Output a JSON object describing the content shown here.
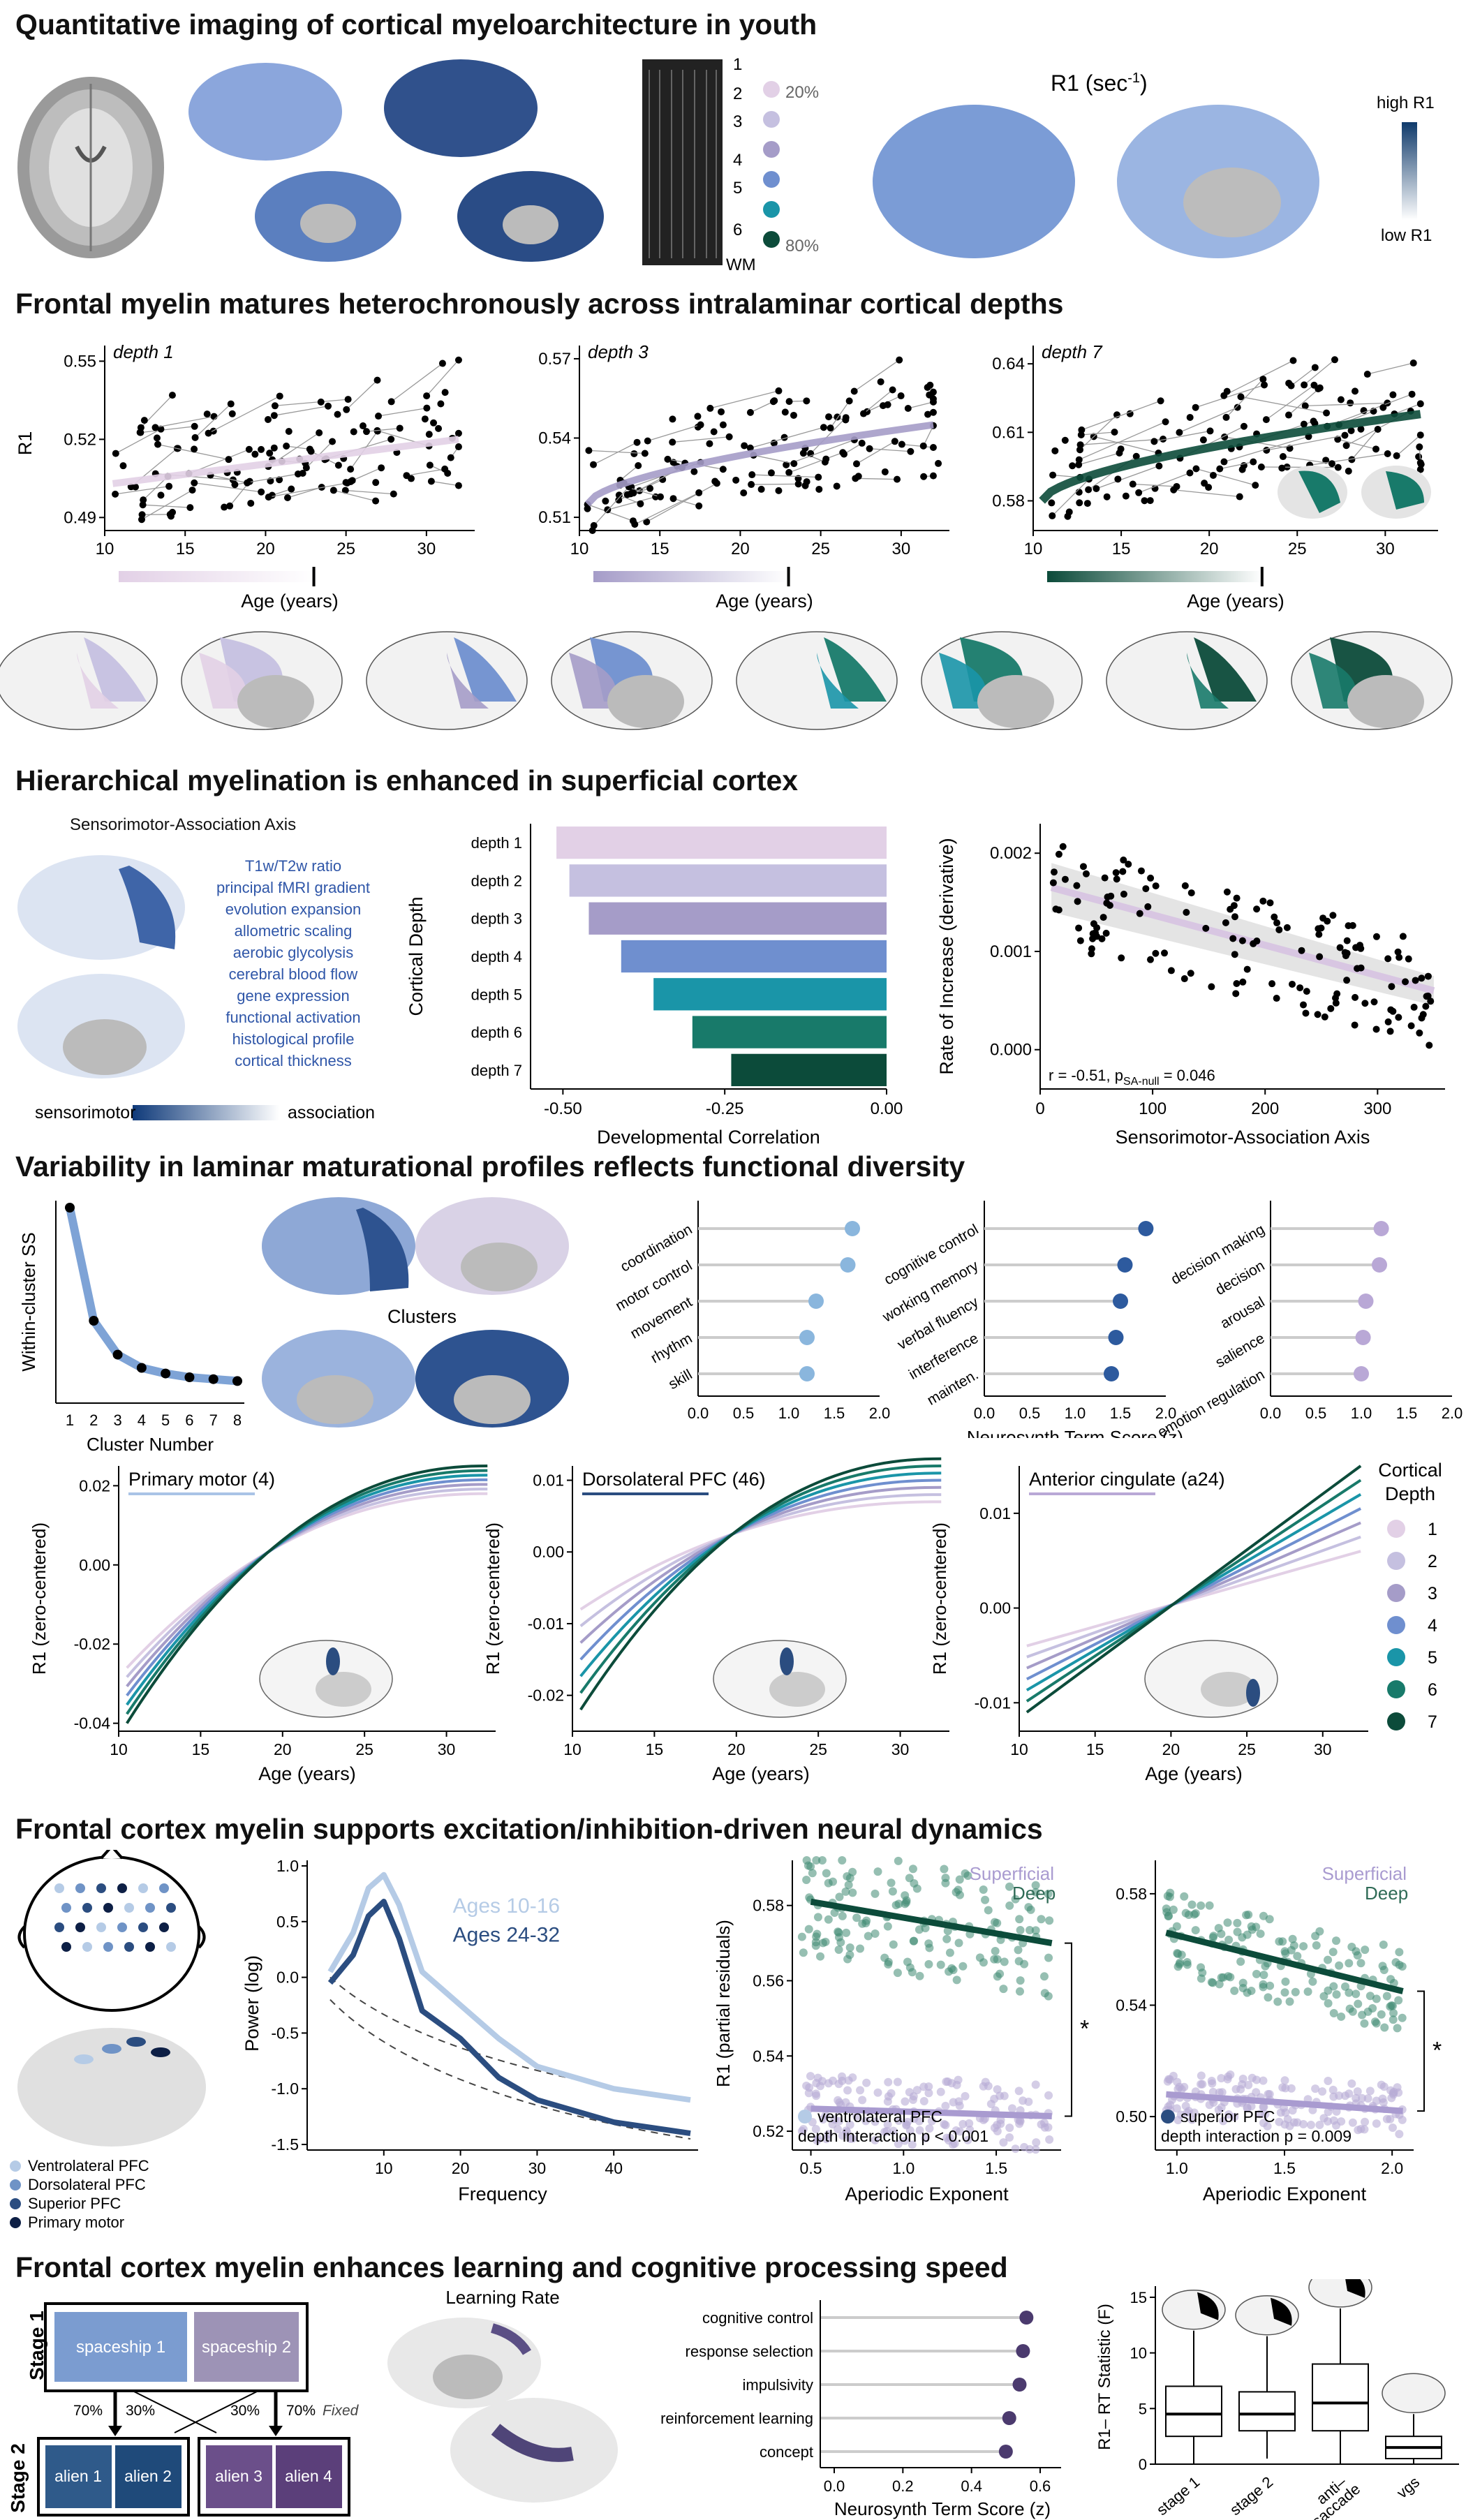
{
  "colors": {
    "d1": "#e2d0e6",
    "d2": "#c5c0e0",
    "d3": "#a59cc8",
    "d4": "#6f8fcf",
    "d5": "#1a95a8",
    "d6": "#187a6a",
    "d7": "#0c4b3a",
    "navy": "#2b4d80",
    "lightblue": "#b5cbe6",
    "purple": "#574377"
  },
  "icons": [
    "brain-mri-icon",
    "cortical-surface-icon",
    "head-eeg-icon",
    "box-plot-icon"
  ],
  "sections": {
    "s1": {
      "title": "Quantitative imaging of cortical myeloarchitecture in youth"
    },
    "s2": {
      "title": "Frontal myelin matures heterochronously across intralaminar cortical depths"
    },
    "s3": {
      "title": "Hierarchical myelination is enhanced in superficial cortex"
    },
    "s4": {
      "title": "Variability in laminar maturational profiles reflects functional diversity"
    },
    "s5": {
      "title": "Frontal cortex myelin supports excitation/inhibition-driven neural dynamics"
    },
    "s6": {
      "title": "Frontal cortex myelin enhances learning and cognitive processing speed"
    }
  },
  "panel1": {
    "depth_labels": [
      "1",
      "2",
      "3",
      "4",
      "5",
      "6",
      "WM"
    ],
    "pct_low": "20%",
    "pct_high": "80%",
    "r1_title_main": "R1 (sec",
    "r1_title_sup": "-1",
    "r1_title_end": ")",
    "colorbar_high": "high R1",
    "colorbar_low": "low R1"
  },
  "panel2": {
    "ylabel": "R1",
    "xlabel": "Age (years)",
    "xticks": [
      "10",
      "15",
      "20",
      "25",
      "30"
    ],
    "plots": [
      {
        "label": "depth 1",
        "yticks": [
          "0.55",
          "0.52",
          "0.49"
        ],
        "ylim": [
          0.485,
          0.556
        ]
      },
      {
        "label": "depth 3",
        "yticks": [
          "0.57",
          "0.54",
          "0.51"
        ],
        "ylim": [
          0.505,
          0.575
        ]
      },
      {
        "label": "depth 7",
        "yticks": [
          "0.64",
          "0.61",
          "0.58"
        ],
        "ylim": [
          0.567,
          0.648
        ]
      }
    ]
  },
  "panel3": {
    "sa_title": "Sensorimotor-Association Axis",
    "sa_terms": [
      "T1w/T2w ratio",
      "principal fMRI gradient",
      "evolution expansion",
      "allometric scaling",
      "aerobic glycolysis",
      "cerebral blood flow",
      "gene expression",
      "functional activation",
      "histological profile",
      "cortical thickness"
    ],
    "sa_bar_left": "sensorimotor",
    "sa_bar_right": "association",
    "bar_ylabel": "Cortical Depth",
    "bar_xlabel": "Developmental Correlation",
    "bar_xticks": [
      "-0.50",
      "-0.25",
      "0.00"
    ],
    "scatter_ylabel": "Rate of Increase (derivative)",
    "scatter_xlabel": "Sensorimotor-Association Axis",
    "scatter_yticks": [
      "0.002",
      "0.001",
      "0.000"
    ],
    "scatter_xticks": [
      "0",
      "100",
      "200",
      "300"
    ],
    "scatter_annot": "r = -0.51, p",
    "scatter_annot_sub": "SA-null",
    "scatter_annot_end": " = 0.046"
  },
  "panel4": {
    "elbow_ylabel": "Within-cluster SS",
    "elbow_xlabel": "Cluster Number",
    "elbow_xticks": [
      "1",
      "2",
      "3",
      "4",
      "5",
      "6",
      "7",
      "8"
    ],
    "clusters_label": "Clusters",
    "lollipop_xlabel": "Neurosynth Term Score (z)",
    "lollipop_xticks": [
      "0.0",
      "0.5",
      "1.0",
      "1.5",
      "2.0"
    ],
    "curve_ylabel": "R1 (zero-centered)",
    "curve_xlabel": "Age (years)",
    "curve_xticks": [
      "10",
      "15",
      "20",
      "25",
      "30"
    ],
    "curves": [
      {
        "title": "Primary motor (4)",
        "yticks": [
          "0.02",
          "0.00",
          "-0.02",
          "-0.04"
        ]
      },
      {
        "title": "Dorsolateral PFC (46)",
        "yticks": [
          "0.01",
          "0.00",
          "-0.01",
          "-0.02"
        ]
      },
      {
        "title": "Anterior cingulate (a24)",
        "yticks": [
          "0.01",
          "0.00",
          "-0.01"
        ]
      }
    ],
    "legend_title_1": "Cortical",
    "legend_title_2": "Depth",
    "legend_items": [
      "1",
      "2",
      "3",
      "4",
      "5",
      "6",
      "7"
    ]
  },
  "panel5": {
    "eeg_legend": [
      "Ventrolateral PFC",
      "Dorsolateral PFC",
      "Superior PFC",
      "Primary motor"
    ],
    "psd_ylabel": "Power (log)",
    "psd_xlabel": "Frequency",
    "psd_yticks": [
      "1.0",
      "0.5",
      "0.0",
      "-0.5",
      "-1.0",
      "-1.5"
    ],
    "psd_xticks": [
      "10",
      "20",
      "30",
      "40"
    ],
    "psd_legend": [
      "Ages 10-16",
      "Ages 24-32"
    ],
    "sc_ylabel": "R1 (partial residuals)",
    "sc_xlabel": "Aperiodic Exponent",
    "sc1_yticks": [
      "0.58",
      "0.56",
      "0.54",
      "0.52"
    ],
    "sc1_xticks": [
      "0.5",
      "1.0",
      "1.5"
    ],
    "sc2_yticks": [
      "0.58",
      "0.54",
      "0.50"
    ],
    "sc2_xticks": [
      "1.0",
      "1.5",
      "2.0"
    ],
    "superficial": "Superficial",
    "deep": "Deep",
    "sc1_region": "ventrolateral PFC",
    "sc1_stat": "depth interaction p < 0.001",
    "sc2_region": "superior PFC",
    "sc2_stat": "depth interaction p = 0.009",
    "star": "*"
  },
  "panel6": {
    "stage1": "Stage 1",
    "stage2": "Stage 2",
    "spaceship1": "spaceship 1",
    "spaceship2": "spaceship 2",
    "alien1": "alien 1",
    "alien2": "alien 2",
    "alien3": "alien 3",
    "alien4": "alien 4",
    "p70": "70%",
    "p30": "30%",
    "fixed": "Fixed",
    "learning_rate": "Learning Rate",
    "terms": [
      "cognitive control",
      "response selection",
      "impulsivity",
      "reinforcement learning",
      "concept"
    ],
    "term_values": [
      0.56,
      0.55,
      0.54,
      0.51,
      0.5
    ],
    "term_xlabel": "Neurosynth Term Score (z)",
    "term_xticks": [
      "0.0",
      "0.2",
      "0.4",
      "0.6"
    ],
    "box_ylabel": "R1– RT Statistic (F)",
    "box_yticks": [
      "15",
      "10",
      "5",
      "0"
    ],
    "box_categories": [
      "stage 1",
      "stage 2",
      "anti–\nsaccade",
      "vgs"
    ]
  },
  "chart_data": [
    {
      "type": "scatter",
      "title": "depth 1",
      "xlabel": "Age (years)",
      "ylabel": "R1",
      "ylim": [
        0.485,
        0.556
      ],
      "xlim": [
        10,
        33
      ],
      "fit": [
        [
          10.5,
          0.503
        ],
        [
          20,
          0.51
        ],
        [
          32,
          0.52
        ]
      ]
    },
    {
      "type": "scatter",
      "title": "depth 3",
      "xlabel": "Age (years)",
      "ylabel": "R1",
      "ylim": [
        0.505,
        0.575
      ],
      "xlim": [
        10,
        33
      ],
      "fit": [
        [
          10.5,
          0.515
        ],
        [
          20,
          0.533
        ],
        [
          32,
          0.545
        ]
      ]
    },
    {
      "type": "scatter",
      "title": "depth 7",
      "xlabel": "Age (years)",
      "ylabel": "R1",
      "ylim": [
        0.567,
        0.648
      ],
      "xlim": [
        10,
        33
      ],
      "fit": [
        [
          10.5,
          0.58
        ],
        [
          20,
          0.603
        ],
        [
          32,
          0.618
        ]
      ]
    },
    {
      "type": "bar",
      "categories": [
        "depth 1",
        "depth 2",
        "depth 3",
        "depth 4",
        "depth 5",
        "depth 6",
        "depth 7"
      ],
      "values": [
        -0.51,
        -0.49,
        -0.46,
        -0.41,
        -0.36,
        -0.3,
        -0.24
      ],
      "xlabel": "Developmental Correlation",
      "ylabel": "Cortical Depth",
      "xlim": [
        -0.55,
        0.0
      ]
    },
    {
      "type": "line",
      "title": "elbow",
      "xlabel": "Cluster Number",
      "ylabel": "Within-cluster SS",
      "x": [
        1,
        2,
        3,
        4,
        5,
        6,
        7,
        8
      ],
      "values": [
        1.0,
        0.4,
        0.22,
        0.15,
        0.12,
        0.1,
        0.09,
        0.08
      ]
    },
    {
      "type": "scatter",
      "title": "lollipop cluster 1",
      "categories": [
        "coordination",
        "motor control",
        "movement",
        "rhythm",
        "skill"
      ],
      "values": [
        1.7,
        1.65,
        1.3,
        1.2,
        1.2
      ],
      "xlim": [
        0,
        2
      ]
    },
    {
      "type": "scatter",
      "title": "lollipop cluster 2",
      "categories": [
        "cognitive control",
        "working memory",
        "verbal fluency",
        "interference",
        "mainten."
      ],
      "values": [
        1.78,
        1.55,
        1.5,
        1.45,
        1.4
      ],
      "xlim": [
        0,
        2
      ]
    },
    {
      "type": "scatter",
      "title": "lollipop cluster 3",
      "categories": [
        "decision making",
        "decision",
        "arousal",
        "salience",
        "emotion regulation"
      ],
      "values": [
        1.22,
        1.2,
        1.05,
        1.02,
        1.0
      ],
      "xlim": [
        0,
        2
      ]
    },
    {
      "type": "line",
      "title": "Primary motor (4)",
      "x": [
        10,
        15,
        20,
        25,
        30,
        32.5
      ],
      "series": [
        {
          "name": "1",
          "values": [
            -0.026,
            -0.012,
            0.002,
            0.01,
            0.016,
            0.018
          ]
        },
        {
          "name": "7",
          "values": [
            -0.04,
            -0.018,
            0.004,
            0.016,
            0.023,
            0.025
          ]
        }
      ],
      "xlabel": "Age (years)",
      "ylabel": "R1 (zero-centered)"
    },
    {
      "type": "line",
      "title": "Dorsolateral PFC (46)",
      "x": [
        10,
        15,
        20,
        25,
        30,
        32.5
      ],
      "series": [
        {
          "name": "1",
          "values": [
            -0.008,
            -0.003,
            0.001,
            0.004,
            0.006,
            0.007
          ]
        },
        {
          "name": "7",
          "values": [
            -0.022,
            -0.01,
            0.002,
            0.009,
            0.012,
            0.013
          ]
        }
      ],
      "xlabel": "Age (years)",
      "ylabel": "R1 (zero-centered)"
    },
    {
      "type": "line",
      "title": "Anterior cingulate (a24)",
      "x": [
        10,
        20,
        32.5
      ],
      "series": [
        {
          "name": "1",
          "values": [
            -0.004,
            0.0,
            0.006
          ]
        },
        {
          "name": "7",
          "values": [
            -0.011,
            0.0,
            0.015
          ]
        }
      ],
      "xlabel": "Age (years)",
      "ylabel": "R1 (zero-centered)"
    },
    {
      "type": "line",
      "title": "PSD",
      "xlabel": "Frequency",
      "ylabel": "Power (log)",
      "series": [
        {
          "name": "Ages 10-16",
          "x": [
            3,
            6,
            8,
            10,
            12,
            15,
            20,
            25,
            30,
            40,
            50
          ],
          "values": [
            0.05,
            0.4,
            0.8,
            0.92,
            0.65,
            0.05,
            -0.25,
            -0.55,
            -0.8,
            -1.0,
            -1.1
          ]
        },
        {
          "name": "Ages 24-32",
          "x": [
            3,
            6,
            8,
            10,
            12,
            15,
            20,
            25,
            30,
            40,
            50
          ],
          "values": [
            -0.05,
            0.2,
            0.55,
            0.68,
            0.35,
            -0.3,
            -0.55,
            -0.9,
            -1.1,
            -1.3,
            -1.4
          ]
        }
      ]
    },
    {
      "type": "scatter",
      "title": "ventrolateral PFC",
      "xlabel": "Aperiodic Exponent",
      "ylabel": "R1 (partial residuals)",
      "series": [
        {
          "name": "Superficial",
          "fit": [
            [
              0.5,
              0.526
            ],
            [
              1.8,
              0.524
            ]
          ]
        },
        {
          "name": "Deep",
          "fit": [
            [
              0.5,
              0.581
            ],
            [
              1.8,
              0.57
            ]
          ]
        }
      ]
    },
    {
      "type": "scatter",
      "title": "superior PFC",
      "xlabel": "Aperiodic Exponent",
      "ylabel": "R1 (partial residuals)",
      "series": [
        {
          "name": "Superficial",
          "fit": [
            [
              0.95,
              0.508
            ],
            [
              2.05,
              0.502
            ]
          ]
        },
        {
          "name": "Deep",
          "fit": [
            [
              0.95,
              0.566
            ],
            [
              2.05,
              0.545
            ]
          ]
        }
      ]
    },
    {
      "type": "box",
      "categories": [
        "stage 1",
        "stage 2",
        "anti–saccade",
        "vgs"
      ],
      "stats": [
        {
          "min": 0,
          "q1": 2.5,
          "median": 4.5,
          "q3": 7.0,
          "max": 12
        },
        {
          "min": 0.5,
          "q1": 3.0,
          "median": 4.5,
          "q3": 6.5,
          "max": 11.5
        },
        {
          "min": 0,
          "q1": 3.0,
          "median": 5.5,
          "q3": 9.0,
          "max": 14
        },
        {
          "min": 0,
          "q1": 0.5,
          "median": 1.5,
          "q3": 2.5,
          "max": 4.5
        }
      ],
      "ylabel": "R1– RT Statistic (F)",
      "ylim": [
        0,
        16
      ]
    }
  ]
}
